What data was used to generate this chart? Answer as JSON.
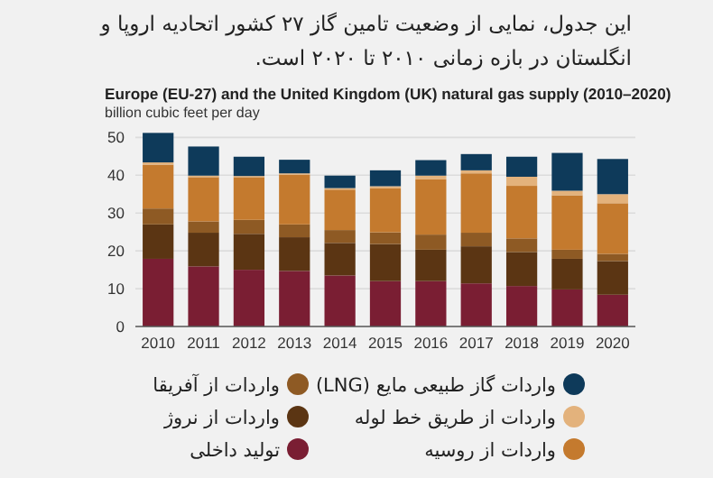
{
  "chart_data": {
    "type": "bar",
    "stacked": true,
    "title": "این جدول، نمایی از وضعیت تامین گاز ۲۷ کشور اتحادیه اروپا و انگلستان در بازه زمانی ۲۰۱۰ تا ۲۰۲۰ است.",
    "subtitle": "Europe (EU-27) and the United Kingdom (UK) natural gas supply (2010–2020)",
    "ylabel": "billion cubic feet per day",
    "categories": [
      "2010",
      "2011",
      "2012",
      "2013",
      "2014",
      "2015",
      "2016",
      "2017",
      "2018",
      "2019",
      "2020"
    ],
    "series": [
      {
        "name": "تولید داخلی",
        "color": "#7a1e33",
        "values": [
          17.9,
          15.9,
          15.0,
          14.7,
          13.5,
          12.0,
          12.0,
          11.4,
          10.7,
          9.8,
          8.4
        ]
      },
      {
        "name": "واردات از نروژ",
        "color": "#5b3513",
        "values": [
          9.1,
          8.9,
          9.5,
          8.9,
          8.6,
          9.8,
          8.3,
          9.8,
          9.0,
          8.1,
          8.9
        ]
      },
      {
        "name": "واردات از آفریقا",
        "color": "#8e5a24",
        "values": [
          4.2,
          3.0,
          3.7,
          3.4,
          3.4,
          3.1,
          4.0,
          3.6,
          3.6,
          2.4,
          1.9
        ]
      },
      {
        "name": "واردات از روسیه",
        "color": "#c47a2e",
        "values": [
          11.6,
          11.7,
          11.3,
          13.1,
          10.7,
          11.6,
          14.6,
          15.7,
          13.9,
          14.4,
          13.4
        ]
      },
      {
        "name": "واردات از طریق خط لوله",
        "color": "#e3b27c",
        "values": [
          0.6,
          0.4,
          0.3,
          0.4,
          0.4,
          0.6,
          1.0,
          0.8,
          2.4,
          1.2,
          2.4
        ]
      },
      {
        "name": "واردات گاز طبیعی مایع (LNG)",
        "color": "#0e3a5a",
        "values": [
          7.8,
          7.7,
          5.1,
          3.6,
          3.3,
          4.2,
          4.1,
          4.3,
          5.3,
          10.0,
          9.3
        ]
      }
    ],
    "ylim": [
      0,
      52
    ],
    "yticks": [
      0,
      10,
      20,
      30,
      40,
      50
    ],
    "grid": "y",
    "legend": "bottom"
  }
}
